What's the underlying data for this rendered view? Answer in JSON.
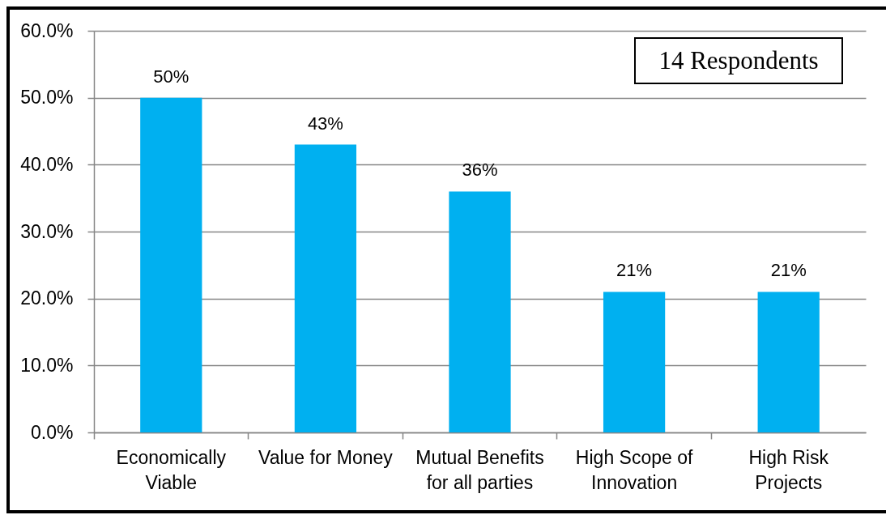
{
  "chart_data": {
    "type": "bar",
    "categories": [
      "Economically Viable",
      "Value for Money",
      "Mutual Benefits for all parties",
      "High Scope of Innovation",
      "High Risk Projects"
    ],
    "values": [
      50,
      43,
      36,
      21,
      21
    ],
    "value_labels": [
      "50%",
      "43%",
      "36%",
      "21%",
      "21%"
    ],
    "color": "#00b0f0",
    "ylim": [
      0,
      60
    ],
    "yticks": [
      {
        "value": 0,
        "label": "0.0%"
      },
      {
        "value": 10,
        "label": "10.0%"
      },
      {
        "value": 20,
        "label": "20.0%"
      },
      {
        "value": 30,
        "label": "30.0%"
      },
      {
        "value": 40,
        "label": "40.0%"
      },
      {
        "value": 50,
        "label": "50.0%"
      },
      {
        "value": 60,
        "label": "60.0%"
      }
    ],
    "grid": "y",
    "annotations": [
      "14 Respondents"
    ]
  }
}
